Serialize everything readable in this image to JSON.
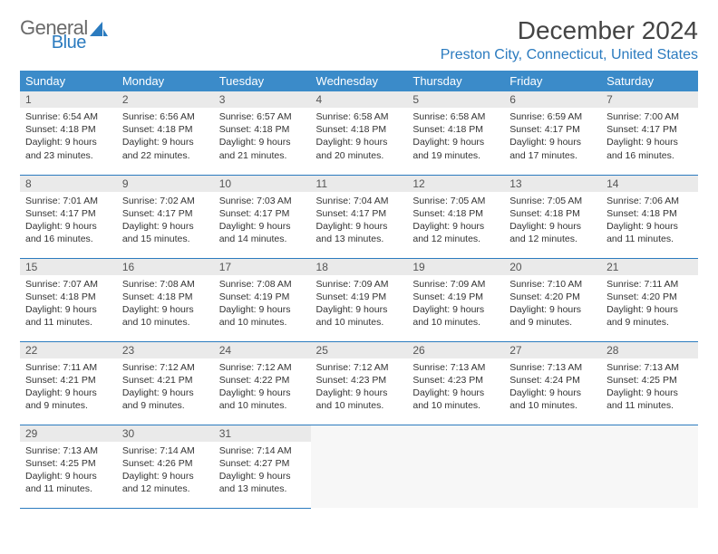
{
  "logo": {
    "text_gray": "General",
    "text_blue": "Blue"
  },
  "title": "December 2024",
  "location": "Preston City, Connecticut, United States",
  "colors": {
    "header_bg": "#3b8bc9",
    "accent": "#2b7bbf",
    "daynum_bg": "#eaeaea",
    "empty_bg": "#f7f7f7"
  },
  "weekdays": [
    "Sunday",
    "Monday",
    "Tuesday",
    "Wednesday",
    "Thursday",
    "Friday",
    "Saturday"
  ],
  "days": [
    {
      "n": "1",
      "sr": "6:54 AM",
      "ss": "4:18 PM",
      "dl": "9 hours and 23 minutes."
    },
    {
      "n": "2",
      "sr": "6:56 AM",
      "ss": "4:18 PM",
      "dl": "9 hours and 22 minutes."
    },
    {
      "n": "3",
      "sr": "6:57 AM",
      "ss": "4:18 PM",
      "dl": "9 hours and 21 minutes."
    },
    {
      "n": "4",
      "sr": "6:58 AM",
      "ss": "4:18 PM",
      "dl": "9 hours and 20 minutes."
    },
    {
      "n": "5",
      "sr": "6:58 AM",
      "ss": "4:18 PM",
      "dl": "9 hours and 19 minutes."
    },
    {
      "n": "6",
      "sr": "6:59 AM",
      "ss": "4:17 PM",
      "dl": "9 hours and 17 minutes."
    },
    {
      "n": "7",
      "sr": "7:00 AM",
      "ss": "4:17 PM",
      "dl": "9 hours and 16 minutes."
    },
    {
      "n": "8",
      "sr": "7:01 AM",
      "ss": "4:17 PM",
      "dl": "9 hours and 16 minutes."
    },
    {
      "n": "9",
      "sr": "7:02 AM",
      "ss": "4:17 PM",
      "dl": "9 hours and 15 minutes."
    },
    {
      "n": "10",
      "sr": "7:03 AM",
      "ss": "4:17 PM",
      "dl": "9 hours and 14 minutes."
    },
    {
      "n": "11",
      "sr": "7:04 AM",
      "ss": "4:17 PM",
      "dl": "9 hours and 13 minutes."
    },
    {
      "n": "12",
      "sr": "7:05 AM",
      "ss": "4:18 PM",
      "dl": "9 hours and 12 minutes."
    },
    {
      "n": "13",
      "sr": "7:05 AM",
      "ss": "4:18 PM",
      "dl": "9 hours and 12 minutes."
    },
    {
      "n": "14",
      "sr": "7:06 AM",
      "ss": "4:18 PM",
      "dl": "9 hours and 11 minutes."
    },
    {
      "n": "15",
      "sr": "7:07 AM",
      "ss": "4:18 PM",
      "dl": "9 hours and 11 minutes."
    },
    {
      "n": "16",
      "sr": "7:08 AM",
      "ss": "4:18 PM",
      "dl": "9 hours and 10 minutes."
    },
    {
      "n": "17",
      "sr": "7:08 AM",
      "ss": "4:19 PM",
      "dl": "9 hours and 10 minutes."
    },
    {
      "n": "18",
      "sr": "7:09 AM",
      "ss": "4:19 PM",
      "dl": "9 hours and 10 minutes."
    },
    {
      "n": "19",
      "sr": "7:09 AM",
      "ss": "4:19 PM",
      "dl": "9 hours and 10 minutes."
    },
    {
      "n": "20",
      "sr": "7:10 AM",
      "ss": "4:20 PM",
      "dl": "9 hours and 9 minutes."
    },
    {
      "n": "21",
      "sr": "7:11 AM",
      "ss": "4:20 PM",
      "dl": "9 hours and 9 minutes."
    },
    {
      "n": "22",
      "sr": "7:11 AM",
      "ss": "4:21 PM",
      "dl": "9 hours and 9 minutes."
    },
    {
      "n": "23",
      "sr": "7:12 AM",
      "ss": "4:21 PM",
      "dl": "9 hours and 9 minutes."
    },
    {
      "n": "24",
      "sr": "7:12 AM",
      "ss": "4:22 PM",
      "dl": "9 hours and 10 minutes."
    },
    {
      "n": "25",
      "sr": "7:12 AM",
      "ss": "4:23 PM",
      "dl": "9 hours and 10 minutes."
    },
    {
      "n": "26",
      "sr": "7:13 AM",
      "ss": "4:23 PM",
      "dl": "9 hours and 10 minutes."
    },
    {
      "n": "27",
      "sr": "7:13 AM",
      "ss": "4:24 PM",
      "dl": "9 hours and 10 minutes."
    },
    {
      "n": "28",
      "sr": "7:13 AM",
      "ss": "4:25 PM",
      "dl": "9 hours and 11 minutes."
    },
    {
      "n": "29",
      "sr": "7:13 AM",
      "ss": "4:25 PM",
      "dl": "9 hours and 11 minutes."
    },
    {
      "n": "30",
      "sr": "7:14 AM",
      "ss": "4:26 PM",
      "dl": "9 hours and 12 minutes."
    },
    {
      "n": "31",
      "sr": "7:14 AM",
      "ss": "4:27 PM",
      "dl": "9 hours and 13 minutes."
    }
  ],
  "labels": {
    "sunrise": "Sunrise:",
    "sunset": "Sunset:",
    "daylight": "Daylight:"
  }
}
